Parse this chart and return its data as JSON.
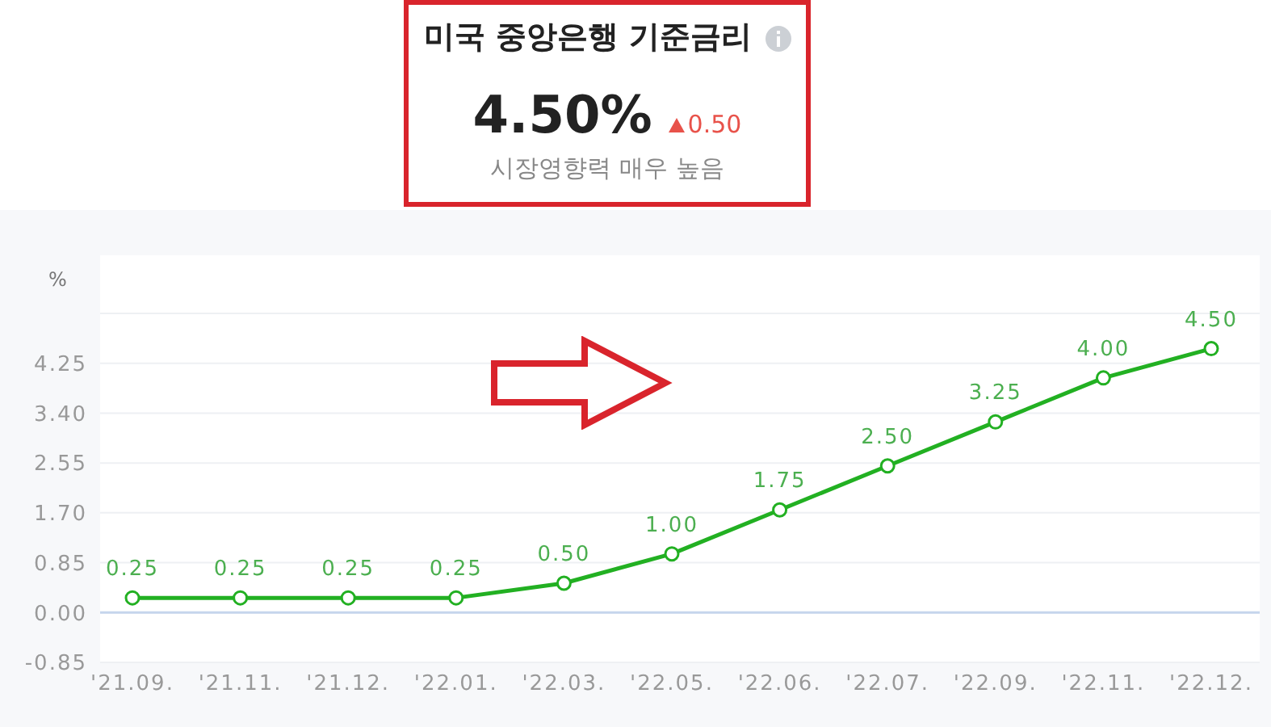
{
  "chart_data": {
    "type": "line",
    "title": "미국 중앙은행 기준금리",
    "annotations": [
      "4.50%",
      "0.50",
      "시장영향력 매우 높음"
    ],
    "ylabel": "%",
    "categories": [
      "'21.09.",
      "'21.11.",
      "'21.12.",
      "'22.01.",
      "'22.03.",
      "'22.05.",
      "'22.06.",
      "'22.07.",
      "'22.09.",
      "'22.11.",
      "'22.12."
    ],
    "series": [
      {
        "color": "#22b022",
        "values": [
          0.25,
          0.25,
          0.25,
          0.25,
          0.5,
          1.0,
          1.75,
          2.5,
          3.25,
          4.0,
          4.5
        ],
        "value_labels": [
          "0.25",
          "0.25",
          "0.25",
          "0.25",
          "0.50",
          "1.00",
          "1.75",
          "2.50",
          "3.25",
          "4.00",
          "4.50"
        ]
      }
    ],
    "ylim": [
      -0.85,
      5.1
    ],
    "yticks": [
      -0.85,
      "0.00",
      0.85,
      "1.70",
      2.55,
      "3.40",
      4.25,
      {
        "value": 5.1,
        "label": null
      }
    ],
    "ref_lines": [
      {
        "axis": "y",
        "value": 0,
        "color": "#c5d5ec"
      }
    ],
    "grid": "y",
    "marker": "circle",
    "line_style": "solid"
  }
}
